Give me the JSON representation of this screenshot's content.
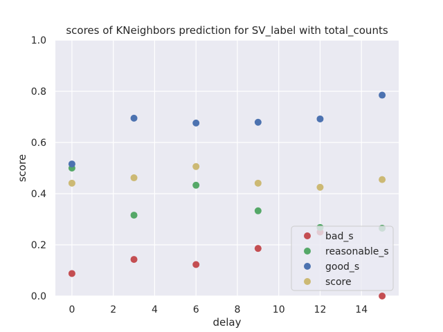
{
  "chart_data": {
    "type": "scatter",
    "title": "scores of KNeighbors prediction for SV_label with total_counts",
    "xlabel": "delay",
    "ylabel": "score",
    "xlim": [
      -0.8,
      15.8
    ],
    "ylim": [
      0.0,
      1.0
    ],
    "xticks": [
      0,
      2,
      4,
      6,
      8,
      10,
      12,
      14
    ],
    "yticks": [
      0.0,
      0.2,
      0.4,
      0.6,
      0.8,
      1.0
    ],
    "xtick_labels": [
      "0",
      "2",
      "4",
      "6",
      "8",
      "10",
      "12",
      "14"
    ],
    "ytick_labels": [
      "0.0",
      "0.2",
      "0.4",
      "0.6",
      "0.8",
      "1.0"
    ],
    "grid": true,
    "legend_position": "lower-right",
    "series": [
      {
        "name": "bad_s",
        "color": "#c44e52",
        "x": [
          0,
          3,
          6,
          9,
          12,
          15
        ],
        "y": [
          0.088,
          0.143,
          0.123,
          0.186,
          0.25,
          0.0
        ]
      },
      {
        "name": "reasonable_s",
        "color": "#55a868",
        "x": [
          0,
          3,
          6,
          9,
          12,
          15
        ],
        "y": [
          0.5,
          0.316,
          0.433,
          0.333,
          0.268,
          0.265
        ]
      },
      {
        "name": "good_s",
        "color": "#4c72b0",
        "x": [
          0,
          3,
          6,
          9,
          12,
          15
        ],
        "y": [
          0.516,
          0.695,
          0.676,
          0.679,
          0.692,
          0.785
        ]
      },
      {
        "name": "score",
        "color": "#ccb974",
        "x": [
          0,
          3,
          6,
          9,
          12,
          15
        ],
        "y": [
          0.441,
          0.462,
          0.506,
          0.441,
          0.425,
          0.455
        ]
      }
    ]
  }
}
